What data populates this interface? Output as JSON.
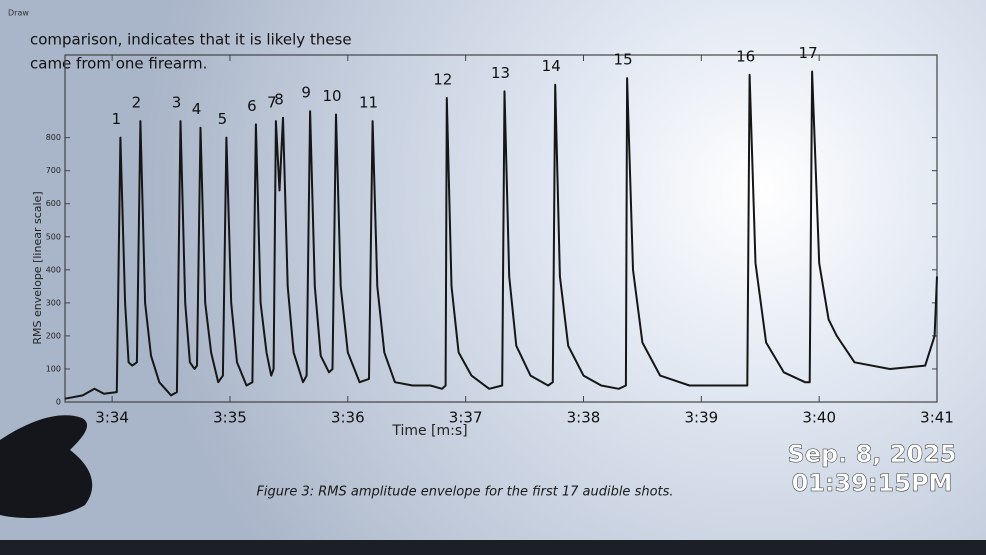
{
  "document": {
    "toolbar": "Draw",
    "lines": [
      "comparison, indicates that it is likely these",
      "came from one firearm."
    ],
    "caption": "Figure 3: RMS amplitude envelope for the first 17 audible shots."
  },
  "timestamp": {
    "date": "Sep. 8, 2025",
    "time": "01:39:15PM"
  },
  "chart_data": {
    "type": "line",
    "y_label": "RMS envelope [linear scale]",
    "x_label": "Time [m:s]",
    "color": "#161616",
    "xlim": [
      213.6,
      221
    ],
    "ylim": [
      0,
      1050
    ],
    "xticks": [
      {
        "value": 214,
        "label": "3:34"
      },
      {
        "value": 215,
        "label": "3:35"
      },
      {
        "value": 216,
        "label": "3:36"
      },
      {
        "value": 217,
        "label": "3:37"
      },
      {
        "value": 218,
        "label": "3:38"
      },
      {
        "value": 219,
        "label": "3:39"
      },
      {
        "value": 220,
        "label": "3:40"
      },
      {
        "value": 221,
        "label": "3:41"
      }
    ],
    "yticks": [
      0,
      100,
      200,
      300,
      400,
      500,
      600,
      700,
      800
    ],
    "annotations": [
      "1",
      "2",
      "3",
      "4",
      "5",
      "6",
      "7",
      "8",
      "9",
      "10",
      "11",
      "12",
      "13",
      "14",
      "15",
      "16",
      "17"
    ],
    "x": [
      213.6,
      213.75,
      213.85,
      213.93,
      214.04,
      214.07,
      214.11,
      214.14,
      214.17,
      214.21,
      214.24,
      214.28,
      214.33,
      214.4,
      214.5,
      214.55,
      214.58,
      214.62,
      214.66,
      214.7,
      214.72,
      214.75,
      214.79,
      214.84,
      214.9,
      214.94,
      214.97,
      215.01,
      215.06,
      215.14,
      215.19,
      215.22,
      215.26,
      215.31,
      215.35,
      215.37,
      215.39,
      215.42,
      215.45,
      215.49,
      215.54,
      215.62,
      215.65,
      215.68,
      215.72,
      215.77,
      215.84,
      215.87,
      215.9,
      215.94,
      216.0,
      216.1,
      216.18,
      216.21,
      216.25,
      216.31,
      216.4,
      216.55,
      216.7,
      216.8,
      216.83,
      216.84,
      216.88,
      216.94,
      217.05,
      217.2,
      217.31,
      217.33,
      217.37,
      217.43,
      217.55,
      217.7,
      217.74,
      217.76,
      217.8,
      217.87,
      218.0,
      218.15,
      218.3,
      218.36,
      218.37,
      218.42,
      218.5,
      218.65,
      218.9,
      219.2,
      219.39,
      219.41,
      219.46,
      219.55,
      219.7,
      219.88,
      219.92,
      219.94,
      220.0,
      220.08,
      220.15,
      220.3,
      220.6,
      220.9,
      220.98,
      221.0
    ],
    "values": [
      10,
      20,
      40,
      25,
      30,
      800,
      300,
      120,
      110,
      120,
      850,
      300,
      140,
      60,
      20,
      30,
      850,
      300,
      120,
      100,
      110,
      830,
      300,
      150,
      60,
      80,
      800,
      300,
      120,
      50,
      60,
      840,
      300,
      150,
      80,
      100,
      850,
      640,
      860,
      350,
      150,
      60,
      80,
      880,
      350,
      140,
      90,
      100,
      870,
      350,
      150,
      60,
      70,
      850,
      350,
      150,
      60,
      50,
      50,
      40,
      50,
      920,
      350,
      150,
      80,
      40,
      50,
      940,
      380,
      170,
      80,
      50,
      60,
      960,
      380,
      170,
      80,
      50,
      40,
      50,
      980,
      400,
      180,
      80,
      50,
      50,
      50,
      990,
      420,
      180,
      90,
      60,
      60,
      1000,
      420,
      250,
      200,
      120,
      100,
      110,
      200,
      380
    ]
  }
}
